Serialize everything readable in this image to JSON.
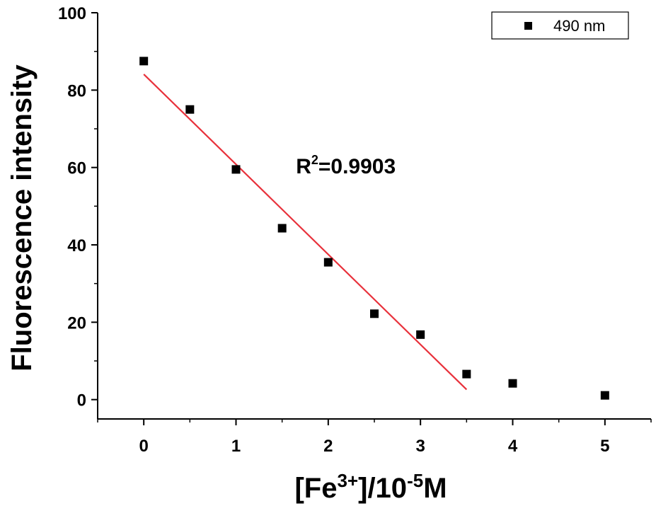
{
  "chart_data": {
    "type": "scatter",
    "xlabel": {
      "main": "[Fe",
      "sup": "3+",
      "mid": "]/10",
      "sup2": "-5",
      "end": "M"
    },
    "ylabel": "Fluorescence intensity",
    "xlim": [
      -0.5,
      5.5
    ],
    "ylim": [
      -5,
      100
    ],
    "x_ticks": [
      0,
      1,
      2,
      3,
      4,
      5
    ],
    "y_ticks": [
      0,
      20,
      40,
      60,
      80,
      100
    ],
    "x_minor_step": 0.5,
    "y_minor_step": 10,
    "grid": false,
    "legend": {
      "position": "top-right",
      "label": "490 nm"
    },
    "series": [
      {
        "name": "490 nm",
        "marker": "square",
        "color": "#000000",
        "x": [
          0,
          0.5,
          1,
          1.5,
          2,
          2.5,
          3,
          3.5,
          4,
          5
        ],
        "y": [
          87.5,
          75,
          59.5,
          44.3,
          35.5,
          22.2,
          16.8,
          6.6,
          4.2,
          1.1
        ]
      }
    ],
    "fit_line": {
      "color": "#e8313b",
      "x": [
        0,
        3.5
      ],
      "y": [
        84.1,
        2.6
      ]
    },
    "annotation": {
      "prefix": "R",
      "sup": "2",
      "value": "=0.9903",
      "x": 1.65,
      "y": 58.5
    }
  }
}
